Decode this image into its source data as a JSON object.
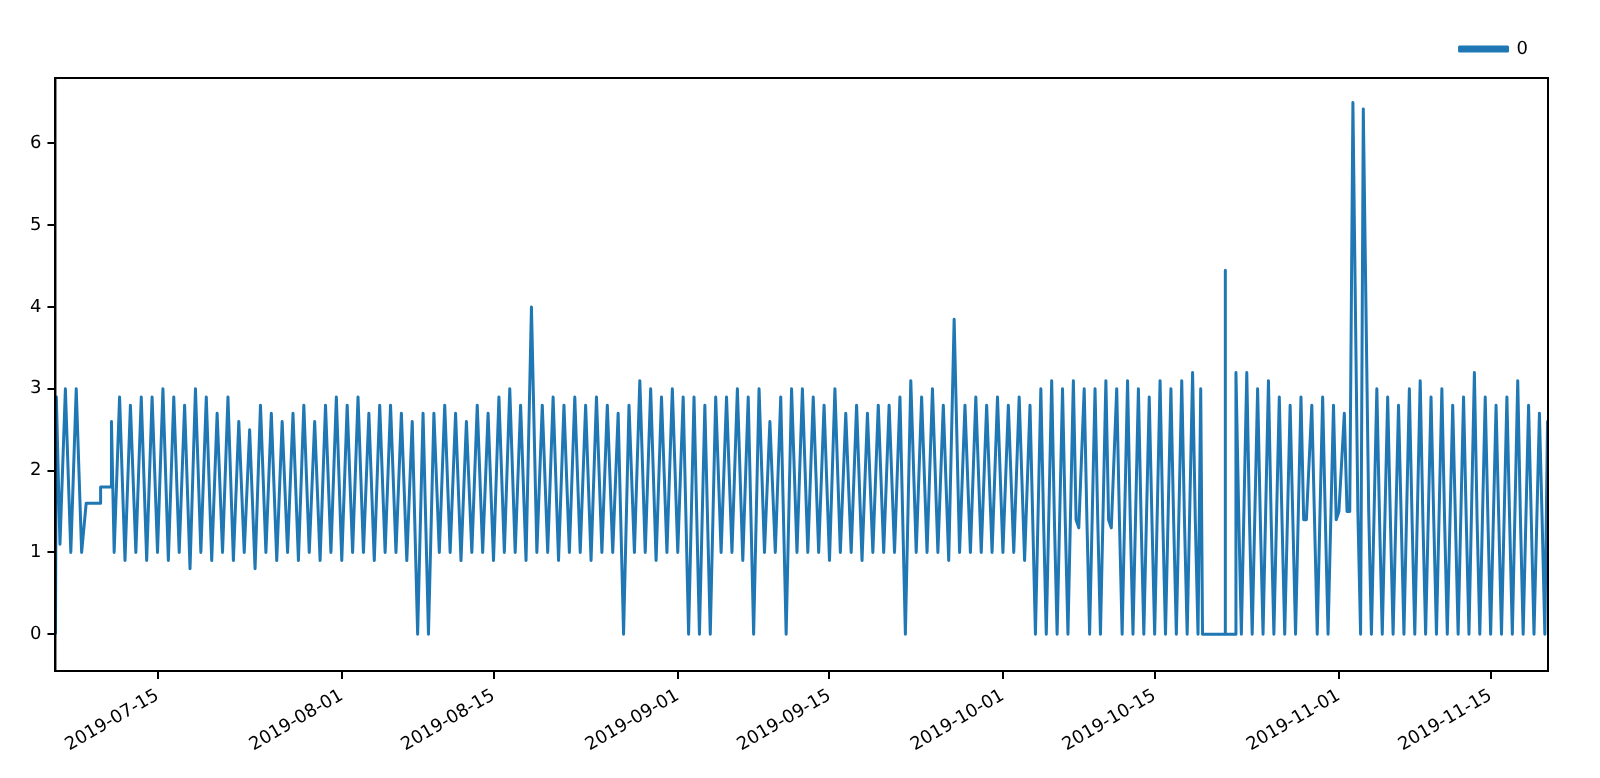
{
  "chart_data": {
    "type": "line",
    "xlim": [
      "2019-07-05T14:00",
      "2019-11-20T07:00"
    ],
    "ylim": [
      -0.45,
      6.8
    ],
    "xticks": [
      "2019-07-15",
      "2019-08-01",
      "2019-08-15",
      "2019-09-01",
      "2019-09-15",
      "2019-10-01",
      "2019-10-15",
      "2019-11-01",
      "2019-11-15"
    ],
    "yticks": [
      0,
      1,
      2,
      3,
      4,
      5,
      6
    ],
    "grid": false,
    "legend": "top right",
    "marker": "none",
    "line_style": "solid",
    "x": [
      "2019-07-05T14:00",
      "2019-07-05T16:00",
      "2019-07-06T00:00",
      "2019-07-06T12:00",
      "2019-07-07T00:00",
      "2019-07-07T12:00",
      "2019-07-08T00:00",
      "2019-07-08T10:00",
      "2019-07-09T17:00",
      "2019-07-09T18:00",
      "2019-07-10T17:00",
      "2019-07-10T18:00",
      "2019-07-11T00:00",
      "2019-07-11T12:00",
      "2019-07-12T00:00",
      "2019-07-12T12:00",
      "2019-07-13T00:00",
      "2019-07-13T12:00",
      "2019-07-14T00:00",
      "2019-07-14T12:00",
      "2019-07-15T00:00",
      "2019-07-15T12:00",
      "2019-07-16T00:00",
      "2019-07-16T12:00",
      "2019-07-17T00:00",
      "2019-07-17T12:00",
      "2019-07-18T00:00",
      "2019-07-18T12:00",
      "2019-07-19T00:00",
      "2019-07-19T12:00",
      "2019-07-20T00:00",
      "2019-07-20T12:00",
      "2019-07-21T00:00",
      "2019-07-21T12:00",
      "2019-07-22T00:00",
      "2019-07-22T12:00",
      "2019-07-23T00:00",
      "2019-07-23T12:00",
      "2019-07-24T00:00",
      "2019-07-24T12:00",
      "2019-07-25T00:00",
      "2019-07-25T12:00",
      "2019-07-26T00:00",
      "2019-07-26T12:00",
      "2019-07-27T00:00",
      "2019-07-27T12:00",
      "2019-07-28T00:00",
      "2019-07-28T12:00",
      "2019-07-29T00:00",
      "2019-07-29T12:00",
      "2019-07-30T00:00",
      "2019-07-30T12:00",
      "2019-07-31T00:00",
      "2019-07-31T12:00",
      "2019-08-01T00:00",
      "2019-08-01T12:00",
      "2019-08-02T00:00",
      "2019-08-02T12:00",
      "2019-08-03T00:00",
      "2019-08-03T12:00",
      "2019-08-04T00:00",
      "2019-08-04T12:00",
      "2019-08-05T00:00",
      "2019-08-05T12:00",
      "2019-08-06T00:00",
      "2019-08-06T12:00",
      "2019-08-07T00:00",
      "2019-08-07T12:00",
      "2019-08-08T00:00",
      "2019-08-08T12:00",
      "2019-08-09T00:00",
      "2019-08-09T12:00",
      "2019-08-10T00:00",
      "2019-08-10T12:00",
      "2019-08-11T00:00",
      "2019-08-11T12:00",
      "2019-08-12T00:00",
      "2019-08-12T12:00",
      "2019-08-13T00:00",
      "2019-08-13T12:00",
      "2019-08-14T00:00",
      "2019-08-14T12:00",
      "2019-08-15T00:00",
      "2019-08-15T12:00",
      "2019-08-16T00:00",
      "2019-08-16T12:00",
      "2019-08-17T00:00",
      "2019-08-17T12:00",
      "2019-08-18T00:00",
      "2019-08-18T12:00",
      "2019-08-19T00:00",
      "2019-08-19T12:00",
      "2019-08-20T00:00",
      "2019-08-20T12:00",
      "2019-08-21T00:00",
      "2019-08-21T12:00",
      "2019-08-22T00:00",
      "2019-08-22T12:00",
      "2019-08-23T00:00",
      "2019-08-23T12:00",
      "2019-08-24T00:00",
      "2019-08-24T12:00",
      "2019-08-25T00:00",
      "2019-08-25T12:00",
      "2019-08-26T00:00",
      "2019-08-26T12:00",
      "2019-08-27T00:00",
      "2019-08-27T12:00",
      "2019-08-28T00:00",
      "2019-08-28T12:00",
      "2019-08-29T00:00",
      "2019-08-29T12:00",
      "2019-08-30T00:00",
      "2019-08-30T12:00",
      "2019-08-31T00:00",
      "2019-08-31T12:00",
      "2019-09-01T00:00",
      "2019-09-01T12:00",
      "2019-09-02T00:00",
      "2019-09-02T12:00",
      "2019-09-03T00:00",
      "2019-09-03T12:00",
      "2019-09-04T00:00",
      "2019-09-04T12:00",
      "2019-09-05T00:00",
      "2019-09-05T12:00",
      "2019-09-06T00:00",
      "2019-09-06T12:00",
      "2019-09-07T00:00",
      "2019-09-07T12:00",
      "2019-09-08T00:00",
      "2019-09-08T12:00",
      "2019-09-09T00:00",
      "2019-09-09T12:00",
      "2019-09-10T00:00",
      "2019-09-10T12:00",
      "2019-09-11T00:00",
      "2019-09-11T12:00",
      "2019-09-12T00:00",
      "2019-09-12T12:00",
      "2019-09-13T00:00",
      "2019-09-13T12:00",
      "2019-09-14T00:00",
      "2019-09-14T12:00",
      "2019-09-15T00:00",
      "2019-09-15T12:00",
      "2019-09-16T00:00",
      "2019-09-16T12:00",
      "2019-09-17T00:00",
      "2019-09-17T12:00",
      "2019-09-18T00:00",
      "2019-09-18T12:00",
      "2019-09-19T00:00",
      "2019-09-19T12:00",
      "2019-09-20T00:00",
      "2019-09-20T12:00",
      "2019-09-21T00:00",
      "2019-09-21T12:00",
      "2019-09-22T00:00",
      "2019-09-22T12:00",
      "2019-09-23T00:00",
      "2019-09-23T12:00",
      "2019-09-24T00:00",
      "2019-09-24T12:00",
      "2019-09-25T00:00",
      "2019-09-25T12:00",
      "2019-09-26T00:00",
      "2019-09-26T12:00",
      "2019-09-27T00:00",
      "2019-09-27T12:00",
      "2019-09-28T00:00",
      "2019-09-28T12:00",
      "2019-09-29T00:00",
      "2019-09-29T12:00",
      "2019-09-30T00:00",
      "2019-09-30T12:00",
      "2019-10-01T00:00",
      "2019-10-01T12:00",
      "2019-10-02T00:00",
      "2019-10-02T12:00",
      "2019-10-03T00:00",
      "2019-10-03T12:00",
      "2019-10-04T00:00",
      "2019-10-04T12:00",
      "2019-10-04T18:00",
      "2019-10-05T00:00",
      "2019-10-05T12:00",
      "2019-10-05T18:00",
      "2019-10-06T00:00",
      "2019-10-06T12:00",
      "2019-10-06T18:00",
      "2019-10-07T00:00",
      "2019-10-07T12:00",
      "2019-10-07T18:00",
      "2019-10-08T00:00",
      "2019-10-08T12:00",
      "2019-10-08T18:00",
      "2019-10-09T00:00",
      "2019-10-09T12:00",
      "2019-10-09T18:00",
      "2019-10-10T00:00",
      "2019-10-10T12:00",
      "2019-10-10T18:00",
      "2019-10-11T00:00",
      "2019-10-11T12:00",
      "2019-10-11T18:00",
      "2019-10-12T00:00",
      "2019-10-12T12:00",
      "2019-10-12T18:00",
      "2019-10-13T00:00",
      "2019-10-13T12:00",
      "2019-10-13T18:00",
      "2019-10-14T00:00",
      "2019-10-14T12:00",
      "2019-10-14T18:00",
      "2019-10-15T00:00",
      "2019-10-15T12:00",
      "2019-10-15T18:00",
      "2019-10-16T00:00",
      "2019-10-16T12:00",
      "2019-10-16T18:00",
      "2019-10-17T00:00",
      "2019-10-17T12:00",
      "2019-10-17T18:00",
      "2019-10-18T00:00",
      "2019-10-18T12:00",
      "2019-10-18T18:00",
      "2019-10-19T00:00",
      "2019-10-19T06:00",
      "2019-10-19T10:00",
      "2019-10-21T11:00",
      "2019-10-21T12:00",
      "2019-10-21T13:00",
      "2019-10-22T10:00",
      "2019-10-22T12:00",
      "2019-10-22T18:00",
      "2019-10-23T00:00",
      "2019-10-23T12:00",
      "2019-10-23T18:00",
      "2019-10-24T00:00",
      "2019-10-24T12:00",
      "2019-10-24T18:00",
      "2019-10-25T00:00",
      "2019-10-25T12:00",
      "2019-10-25T18:00",
      "2019-10-26T00:00",
      "2019-10-26T12:00",
      "2019-10-26T18:00",
      "2019-10-27T00:00",
      "2019-10-27T12:00",
      "2019-10-27T18:00",
      "2019-10-28T00:00",
      "2019-10-28T12:00",
      "2019-10-28T18:00",
      "2019-10-29T00:00",
      "2019-10-29T12:00",
      "2019-10-29T18:00",
      "2019-10-30T00:00",
      "2019-10-30T12:00",
      "2019-10-30T18:00",
      "2019-10-31T00:00",
      "2019-10-31T12:00",
      "2019-10-31T18:00",
      "2019-11-01T00:00",
      "2019-11-01T12:00",
      "2019-11-01T18:00",
      "2019-11-02T00:00",
      "2019-11-02T07:00",
      "2019-11-02T18:00",
      "2019-11-03T00:00",
      "2019-11-03T06:00",
      "2019-11-03T18:00",
      "2019-11-04T00:00",
      "2019-11-04T12:00",
      "2019-11-04T18:00",
      "2019-11-05T00:00",
      "2019-11-05T12:00",
      "2019-11-05T18:00",
      "2019-11-06T00:00",
      "2019-11-06T12:00",
      "2019-11-06T18:00",
      "2019-11-07T00:00",
      "2019-11-07T12:00",
      "2019-11-07T18:00",
      "2019-11-08T00:00",
      "2019-11-08T12:00",
      "2019-11-08T18:00",
      "2019-11-09T00:00",
      "2019-11-09T12:00",
      "2019-11-09T18:00",
      "2019-11-10T00:00",
      "2019-11-10T12:00",
      "2019-11-10T18:00",
      "2019-11-11T00:00",
      "2019-11-11T12:00",
      "2019-11-11T18:00",
      "2019-11-12T00:00",
      "2019-11-12T12:00",
      "2019-11-12T18:00",
      "2019-11-13T00:00",
      "2019-11-13T12:00",
      "2019-11-13T18:00",
      "2019-11-14T00:00",
      "2019-11-14T12:00",
      "2019-11-14T18:00",
      "2019-11-15T00:00",
      "2019-11-15T12:00",
      "2019-11-15T18:00",
      "2019-11-16T00:00",
      "2019-11-16T12:00",
      "2019-11-16T18:00",
      "2019-11-17T00:00",
      "2019-11-17T12:00",
      "2019-11-17T18:00",
      "2019-11-18T00:00",
      "2019-11-18T12:00",
      "2019-11-18T18:00",
      "2019-11-19T00:00",
      "2019-11-19T12:00",
      "2019-11-19T18:00",
      "2019-11-20T00:00",
      "2019-11-20T06:00",
      "2019-11-20T07:00"
    ],
    "series": [
      {
        "name": "0",
        "color": "#1f77b4",
        "values": [
          0,
          2.9,
          1.1,
          3.0,
          1.0,
          3.0,
          1.0,
          1.6,
          1.6,
          1.8,
          1.8,
          2.6,
          1.0,
          2.9,
          0.9,
          2.8,
          1.0,
          2.9,
          0.9,
          2.9,
          1.0,
          3.0,
          0.9,
          2.9,
          1.0,
          2.8,
          0.8,
          3.0,
          1.0,
          2.9,
          0.9,
          2.7,
          1.0,
          2.9,
          0.9,
          2.6,
          1.0,
          2.5,
          0.8,
          2.8,
          1.0,
          2.7,
          0.9,
          2.6,
          1.0,
          2.7,
          0.9,
          2.8,
          1.0,
          2.6,
          0.9,
          2.8,
          1.0,
          2.9,
          0.9,
          2.8,
          1.0,
          2.9,
          1.0,
          2.7,
          0.9,
          2.8,
          1.0,
          2.8,
          1.0,
          2.7,
          0.9,
          2.6,
          0,
          2.7,
          0,
          2.7,
          1.0,
          2.8,
          1.0,
          2.7,
          0.9,
          2.6,
          1.0,
          2.8,
          1.0,
          2.7,
          0.9,
          2.9,
          1.0,
          3.0,
          1.0,
          2.8,
          0.9,
          4.0,
          1.0,
          2.8,
          1.0,
          2.9,
          0.9,
          2.8,
          1.0,
          2.9,
          1.0,
          2.8,
          0.9,
          2.9,
          1.0,
          2.8,
          1.0,
          2.7,
          0,
          2.8,
          1.0,
          3.1,
          1.0,
          3.0,
          0.9,
          2.9,
          1.0,
          3.0,
          1.0,
          2.9,
          0,
          2.9,
          0,
          2.8,
          0,
          2.9,
          1.0,
          2.9,
          1.0,
          3.0,
          0.9,
          2.9,
          0,
          3.0,
          1.0,
          2.6,
          1.0,
          2.9,
          0,
          3.0,
          1.0,
          3.0,
          1.0,
          2.9,
          1.0,
          2.8,
          0.9,
          3.0,
          1.0,
          2.7,
          1.0,
          2.8,
          0.9,
          2.7,
          1.0,
          2.8,
          1.0,
          2.8,
          1.0,
          2.9,
          0,
          3.1,
          1.0,
          2.9,
          1.0,
          3.0,
          1.0,
          2.8,
          0.9,
          3.85,
          1.0,
          2.8,
          1.0,
          2.9,
          1.0,
          2.8,
          1.0,
          2.9,
          1.0,
          2.8,
          1.0,
          2.9,
          0.9,
          2.8,
          0,
          3.0,
          1.4,
          0,
          3.1,
          1.4,
          0,
          3.0,
          1.4,
          0,
          3.1,
          1.4,
          1.3,
          3.0,
          1.4,
          0,
          3.0,
          1.4,
          0,
          3.1,
          1.4,
          1.3,
          3.0,
          1.4,
          0,
          3.1,
          1.4,
          0,
          3.0,
          1.4,
          0,
          2.9,
          1.4,
          0,
          3.1,
          1.4,
          0,
          3.0,
          1.4,
          0,
          3.1,
          1.4,
          0,
          3.2,
          1.4,
          0,
          3.0,
          0,
          0,
          4.45,
          0,
          0,
          3.2,
          1.5,
          0,
          3.2,
          1.4,
          0,
          3.0,
          1.4,
          0,
          3.1,
          1.4,
          0,
          2.9,
          1.4,
          0,
          2.8,
          1.4,
          0,
          2.9,
          1.4,
          1.4,
          2.8,
          1.4,
          0,
          2.9,
          1.4,
          0,
          2.8,
          1.4,
          1.5,
          2.7,
          1.5,
          1.5,
          6.5,
          1.5,
          0,
          6.42,
          1.5,
          0,
          3.0,
          1.4,
          0,
          2.9,
          1.4,
          0,
          2.8,
          1.4,
          0,
          3.0,
          1.4,
          0,
          3.1,
          1.4,
          0,
          2.9,
          1.4,
          0,
          3.0,
          1.4,
          0,
          2.8,
          1.4,
          0,
          2.9,
          1.4,
          0,
          3.2,
          1.4,
          0,
          2.9,
          1.4,
          0,
          2.8,
          1.4,
          0,
          2.9,
          1.4,
          0,
          3.1,
          1.4,
          0,
          2.8,
          1.4,
          0,
          2.7,
          1.4,
          0,
          2.6,
          1.4
        ]
      }
    ]
  }
}
